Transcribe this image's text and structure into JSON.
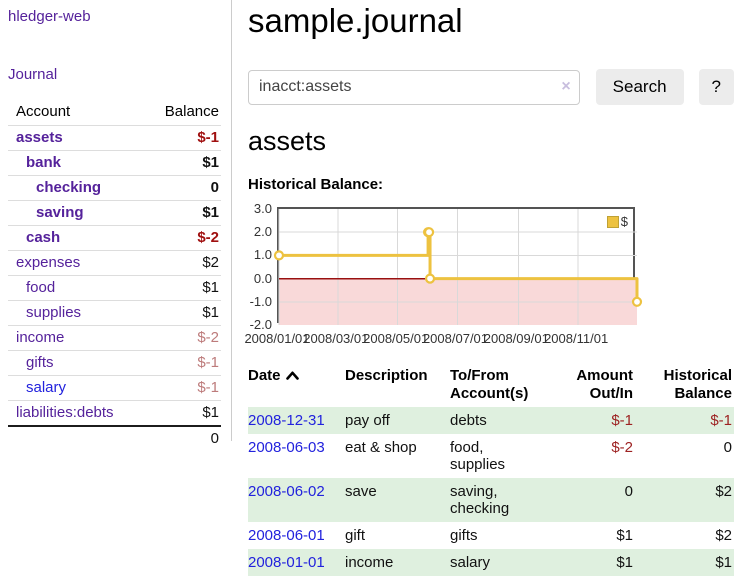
{
  "app": {
    "title": "hledger-web",
    "nav_journal": "Journal"
  },
  "sidebar": {
    "columns": {
      "account": "Account",
      "balance": "Balance"
    },
    "accounts": [
      {
        "name": "assets",
        "depth": 1,
        "bold": true,
        "link_color": "purple",
        "balance": "$-1",
        "balance_color": "red"
      },
      {
        "name": "bank",
        "depth": 2,
        "bold": true,
        "link_color": "purple",
        "balance": "$1",
        "balance_color": "black"
      },
      {
        "name": "checking",
        "depth": 3,
        "bold": true,
        "link_color": "purple",
        "balance": "0",
        "balance_color": "black"
      },
      {
        "name": "saving",
        "depth": 3,
        "bold": true,
        "link_color": "purple",
        "balance": "$1",
        "balance_color": "black"
      },
      {
        "name": "cash",
        "depth": 2,
        "bold": true,
        "link_color": "purple",
        "balance": "$-2",
        "balance_color": "red"
      },
      {
        "name": "expenses",
        "depth": 1,
        "bold": false,
        "link_color": "purple",
        "balance": "$2",
        "balance_color": "black"
      },
      {
        "name": "food",
        "depth": 2,
        "bold": false,
        "link_color": "purple",
        "balance": "$1",
        "balance_color": "black"
      },
      {
        "name": "supplies",
        "depth": 2,
        "bold": false,
        "link_color": "purple",
        "balance": "$1",
        "balance_color": "black"
      },
      {
        "name": "income",
        "depth": 1,
        "bold": false,
        "link_color": "purple",
        "balance": "$-2",
        "balance_color": "rose"
      },
      {
        "name": "gifts",
        "depth": 2,
        "bold": false,
        "link_color": "purple",
        "balance": "$-1",
        "balance_color": "rose"
      },
      {
        "name": "salary",
        "depth": 2,
        "bold": false,
        "link_color": "blue",
        "balance": "$-1",
        "balance_color": "rose"
      },
      {
        "name": "liabilities:debts",
        "depth": 1,
        "bold": false,
        "link_color": "purple",
        "balance": "$1",
        "balance_color": "black"
      }
    ],
    "total": "0"
  },
  "main": {
    "title": "sample.journal",
    "search": {
      "value": "inacct:assets",
      "clear_icon": "×",
      "search_button": "Search",
      "help_button": "?"
    },
    "account_heading": "assets",
    "section_label": "Historical Balance:"
  },
  "chart_data": {
    "type": "line",
    "step": true,
    "title": "Historical Balance",
    "series": [
      {
        "name": "$",
        "points": [
          [
            "2008-01-01",
            1
          ],
          [
            "2008-06-01",
            2
          ],
          [
            "2008-06-02",
            2
          ],
          [
            "2008-06-03",
            0
          ],
          [
            "2008-12-31",
            -1
          ]
        ]
      }
    ],
    "x_range": [
      "2008-01-01",
      "2008-12-31"
    ],
    "ylim": [
      -2,
      3
    ],
    "y_ticks": [
      {
        "label": "3.0",
        "value": 3
      },
      {
        "label": "2.0",
        "value": 2
      },
      {
        "label": "1.0",
        "value": 1
      },
      {
        "label": "0.0",
        "value": 0
      },
      {
        "label": "-1.0",
        "value": -1
      },
      {
        "label": "-2.0",
        "value": -2
      }
    ],
    "x_ticks": [
      {
        "label": "2008/01/01",
        "date": "2008-01-01"
      },
      {
        "label": "2008/03/01",
        "date": "2008-03-01"
      },
      {
        "label": "2008/05/01",
        "date": "2008-05-01"
      },
      {
        "label": "2008/07/01",
        "date": "2008-07-01"
      },
      {
        "label": "2008/09/01",
        "date": "2008-09-01"
      },
      {
        "label": "2008/11/01",
        "date": "2008-11-01"
      }
    ],
    "legend": {
      "label": "$",
      "position": "top-right"
    },
    "grid": true,
    "colors": {
      "line": "#edc240",
      "marker_fill": "#ffffff",
      "negative_region": "#f9d9d9",
      "zero_line": "#991111",
      "grid": "#d9d9d9",
      "border": "#545454"
    }
  },
  "register": {
    "headers": [
      {
        "label": "Date",
        "sorted": "asc"
      },
      {
        "label": "Description"
      },
      {
        "label": "To/From Account(s)"
      },
      {
        "label": "Amount Out/In",
        "align": "right"
      },
      {
        "label": "Historical Balance",
        "align": "right"
      }
    ],
    "rows": [
      {
        "date": "2008-12-31",
        "description": "pay off",
        "accounts": "debts",
        "amount": "$-1",
        "amount_negative": true,
        "balance": "$-1",
        "balance_negative": true,
        "shaded": true
      },
      {
        "date": "2008-06-03",
        "description": "eat & shop",
        "accounts": "food, supplies",
        "amount": "$-2",
        "amount_negative": true,
        "balance": "0",
        "balance_negative": false,
        "shaded": false
      },
      {
        "date": "2008-06-02",
        "description": "save",
        "accounts": "saving, checking",
        "amount": "0",
        "amount_negative": false,
        "balance": "$2",
        "balance_negative": false,
        "shaded": true
      },
      {
        "date": "2008-06-01",
        "description": "gift",
        "accounts": "gifts",
        "amount": "$1",
        "amount_negative": false,
        "balance": "$2",
        "balance_negative": false,
        "shaded": false
      },
      {
        "date": "2008-01-01",
        "description": "income",
        "accounts": "salary",
        "amount": "$1",
        "amount_negative": false,
        "balance": "$1",
        "balance_negative": false,
        "shaded": true
      }
    ]
  }
}
